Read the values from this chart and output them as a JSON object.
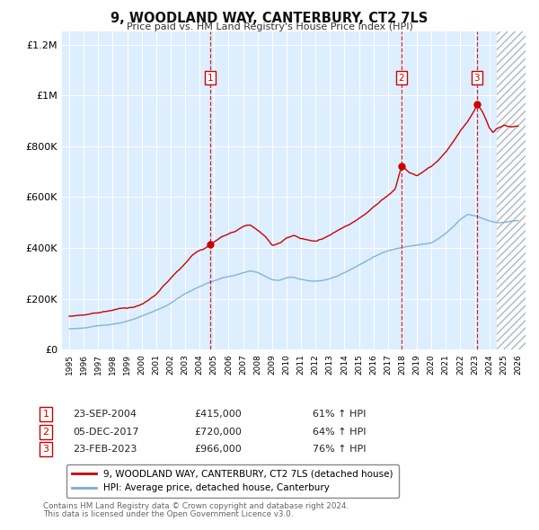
{
  "title": "9, WOODLAND WAY, CANTERBURY, CT2 7LS",
  "subtitle": "Price paid vs. HM Land Registry's House Price Index (HPI)",
  "legend_line1": "9, WOODLAND WAY, CANTERBURY, CT2 7LS (detached house)",
  "legend_line2": "HPI: Average price, detached house, Canterbury",
  "sale1_date": "23-SEP-2004",
  "sale1_price": "£415,000",
  "sale1_hpi": "61% ↑ HPI",
  "sale2_date": "05-DEC-2017",
  "sale2_price": "£720,000",
  "sale2_hpi": "64% ↑ HPI",
  "sale3_date": "23-FEB-2023",
  "sale3_price": "£966,000",
  "sale3_hpi": "76% ↑ HPI",
  "footer1": "Contains HM Land Registry data © Crown copyright and database right 2024.",
  "footer2": "This data is licensed under the Open Government Licence v3.0.",
  "red_color": "#cc0000",
  "blue_color": "#7aadd4",
  "bg_color": "#ddeeff",
  "grid_color": "#ffffff",
  "hatch_start_year": 2024.5,
  "sale1_year": 2004.73,
  "sale2_year": 2017.92,
  "sale3_year": 2023.14,
  "xmin": 1994.5,
  "xmax": 2026.5,
  "ymin": 0,
  "ymax": 1250000,
  "hpi_anchors": [
    [
      1995.0,
      82000
    ],
    [
      1995.5,
      84000
    ],
    [
      1996.0,
      86000
    ],
    [
      1996.5,
      89000
    ],
    [
      1997.0,
      93000
    ],
    [
      1997.5,
      96000
    ],
    [
      1998.0,
      101000
    ],
    [
      1998.5,
      106000
    ],
    [
      1999.0,
      112000
    ],
    [
      1999.5,
      120000
    ],
    [
      2000.0,
      130000
    ],
    [
      2000.5,
      140000
    ],
    [
      2001.0,
      152000
    ],
    [
      2001.5,
      165000
    ],
    [
      2002.0,
      180000
    ],
    [
      2002.5,
      200000
    ],
    [
      2003.0,
      218000
    ],
    [
      2003.5,
      232000
    ],
    [
      2004.0,
      245000
    ],
    [
      2004.5,
      258000
    ],
    [
      2005.0,
      268000
    ],
    [
      2005.5,
      278000
    ],
    [
      2006.0,
      285000
    ],
    [
      2006.5,
      290000
    ],
    [
      2007.0,
      298000
    ],
    [
      2007.5,
      305000
    ],
    [
      2008.0,
      300000
    ],
    [
      2008.5,
      285000
    ],
    [
      2009.0,
      270000
    ],
    [
      2009.5,
      268000
    ],
    [
      2010.0,
      278000
    ],
    [
      2010.5,
      280000
    ],
    [
      2011.0,
      272000
    ],
    [
      2011.5,
      268000
    ],
    [
      2012.0,
      265000
    ],
    [
      2012.5,
      268000
    ],
    [
      2013.0,
      275000
    ],
    [
      2013.5,
      285000
    ],
    [
      2014.0,
      300000
    ],
    [
      2014.5,
      315000
    ],
    [
      2015.0,
      330000
    ],
    [
      2015.5,
      345000
    ],
    [
      2016.0,
      362000
    ],
    [
      2016.5,
      375000
    ],
    [
      2017.0,
      385000
    ],
    [
      2017.5,
      392000
    ],
    [
      2018.0,
      398000
    ],
    [
      2018.5,
      405000
    ],
    [
      2019.0,
      410000
    ],
    [
      2019.5,
      415000
    ],
    [
      2020.0,
      418000
    ],
    [
      2020.5,
      435000
    ],
    [
      2021.0,
      455000
    ],
    [
      2021.5,
      480000
    ],
    [
      2022.0,
      510000
    ],
    [
      2022.5,
      530000
    ],
    [
      2023.0,
      525000
    ],
    [
      2023.5,
      515000
    ],
    [
      2024.0,
      505000
    ],
    [
      2024.5,
      498000
    ],
    [
      2025.0,
      500000
    ],
    [
      2025.5,
      505000
    ],
    [
      2026.0,
      508000
    ]
  ],
  "price_anchors": [
    [
      1995.0,
      132000
    ],
    [
      1995.5,
      135000
    ],
    [
      1996.0,
      140000
    ],
    [
      1996.5,
      145000
    ],
    [
      1997.0,
      150000
    ],
    [
      1997.5,
      155000
    ],
    [
      1998.0,
      162000
    ],
    [
      1998.5,
      168000
    ],
    [
      1999.0,
      172000
    ],
    [
      1999.5,
      178000
    ],
    [
      2000.0,
      188000
    ],
    [
      2000.5,
      205000
    ],
    [
      2001.0,
      225000
    ],
    [
      2001.5,
      258000
    ],
    [
      2002.0,
      290000
    ],
    [
      2002.5,
      318000
    ],
    [
      2003.0,
      345000
    ],
    [
      2003.5,
      375000
    ],
    [
      2004.0,
      398000
    ],
    [
      2004.73,
      415000
    ],
    [
      2005.0,
      430000
    ],
    [
      2005.5,
      450000
    ],
    [
      2006.0,
      460000
    ],
    [
      2006.5,
      472000
    ],
    [
      2007.0,
      490000
    ],
    [
      2007.5,
      498000
    ],
    [
      2008.0,
      478000
    ],
    [
      2008.5,
      455000
    ],
    [
      2009.0,
      415000
    ],
    [
      2009.5,
      425000
    ],
    [
      2010.0,
      448000
    ],
    [
      2010.5,
      458000
    ],
    [
      2011.0,
      445000
    ],
    [
      2011.5,
      438000
    ],
    [
      2012.0,
      430000
    ],
    [
      2012.5,
      440000
    ],
    [
      2013.0,
      455000
    ],
    [
      2013.5,
      468000
    ],
    [
      2014.0,
      485000
    ],
    [
      2014.5,
      498000
    ],
    [
      2015.0,
      515000
    ],
    [
      2015.5,
      535000
    ],
    [
      2016.0,
      560000
    ],
    [
      2016.5,
      585000
    ],
    [
      2017.0,
      610000
    ],
    [
      2017.5,
      635000
    ],
    [
      2017.92,
      720000
    ],
    [
      2018.0,
      725000
    ],
    [
      2018.5,
      700000
    ],
    [
      2019.0,
      690000
    ],
    [
      2019.5,
      710000
    ],
    [
      2020.0,
      725000
    ],
    [
      2020.5,
      750000
    ],
    [
      2021.0,
      780000
    ],
    [
      2021.5,
      820000
    ],
    [
      2022.0,
      865000
    ],
    [
      2022.5,
      900000
    ],
    [
      2023.0,
      945000
    ],
    [
      2023.14,
      966000
    ],
    [
      2023.5,
      940000
    ],
    [
      2023.75,
      910000
    ],
    [
      2024.0,
      875000
    ],
    [
      2024.25,
      855000
    ],
    [
      2024.5,
      870000
    ],
    [
      2025.0,
      880000
    ],
    [
      2025.5,
      875000
    ],
    [
      2026.0,
      880000
    ]
  ]
}
